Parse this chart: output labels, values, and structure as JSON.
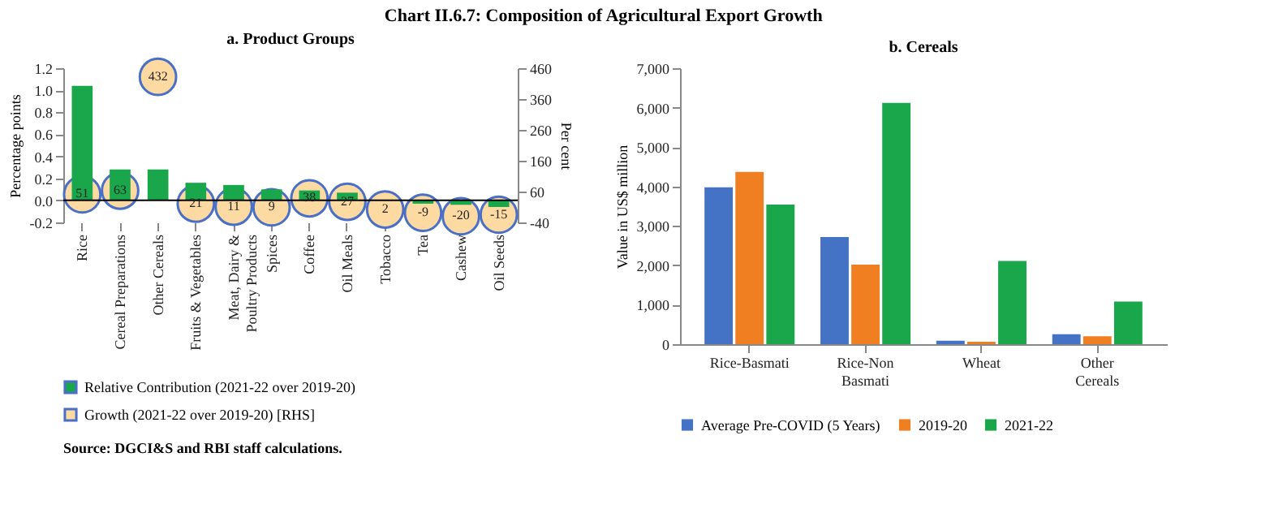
{
  "chart_data": [
    {
      "type": "bar",
      "title": "a. Product Groups",
      "ylabel": "Percentage points",
      "y2label": "Per cent",
      "annotations": [
        "Chart II.6.7: Composition of Agricultural Export Growth",
        "Source: DGCI&S and RBI staff calculations."
      ],
      "categories": [
        "Rice",
        "Cereal Preparations",
        "Other Cereals",
        "Fruits & Vegetables",
        "Meat, Dairy & Poultry Products",
        "Spices",
        "Coffee",
        "Oil Meals",
        "Tobacco",
        "Tea",
        "Cashew",
        "Oil Seeds"
      ],
      "series": [
        {
          "name": "Relative Contribution (2021-22 over 2019-20)",
          "type": "bar",
          "color": "#1aa64a",
          "values": [
            1.04,
            0.28,
            0.28,
            0.16,
            0.14,
            0.1,
            0.09,
            0.07,
            0.0,
            -0.03,
            -0.04,
            -0.06
          ]
        },
        {
          "name": "Growth (2021-22 over 2019-20) [RHS]",
          "type": "scatter",
          "axis": "y2",
          "color": "#fcdaa2",
          "values": [
            51,
            63,
            432,
            21,
            11,
            9,
            38,
            27,
            2,
            -9,
            -20,
            -15
          ],
          "value_labels": [
            "51",
            "63",
            "432",
            "21",
            "11",
            "9",
            "38",
            "27",
            "2",
            "-9",
            "-20",
            "-15"
          ]
        }
      ],
      "ylim": [
        -0.2,
        1.2
      ],
      "yticks": [
        {
          "value": -0.2,
          "label": "-0.2"
        },
        {
          "value": 0,
          "label": "0.0"
        },
        {
          "value": 0.2,
          "label": "0.2"
        },
        {
          "value": 0.4,
          "label": "0.4"
        },
        {
          "value": 0.6,
          "label": "0.6"
        },
        {
          "value": 0.8,
          "label": "0.8"
        },
        {
          "value": 1,
          "label": "1.0"
        },
        1.2
      ],
      "y2lim": [
        -40,
        460
      ],
      "y2ticks": [
        -40,
        60,
        160,
        260,
        360,
        460
      ],
      "marker": "circle",
      "legend": "bottom",
      "grid": false
    },
    {
      "type": "bar",
      "title": "b. Cereals",
      "ylabel": "Value in US$ million",
      "categories": [
        "Rice-Basmati",
        "Rice-Non Basmati",
        "Wheat",
        "Other Cereals"
      ],
      "series": [
        {
          "name": "Average Pre-COVID (5 Years)",
          "color": "#4472c4",
          "values": [
            3980,
            2720,
            90,
            250
          ]
        },
        {
          "name": "2019-20",
          "color": "#f07f22",
          "values": [
            4370,
            2020,
            60,
            200
          ]
        },
        {
          "name": "2021-22",
          "color": "#1aa64a",
          "values": [
            3540,
            6120,
            2110,
            1080
          ]
        }
      ],
      "ylim": [
        0,
        7000
      ],
      "yticks": [
        0,
        {
          "value": 1000,
          "label": "1,000"
        },
        {
          "value": 2000,
          "label": "2,000"
        },
        {
          "value": 3000,
          "label": "3,000"
        },
        {
          "value": 4000,
          "label": "4,000"
        },
        {
          "value": 5000,
          "label": "5,000"
        },
        {
          "value": 6000,
          "label": "6,000"
        },
        {
          "value": 7000,
          "label": "7,000"
        }
      ],
      "legend": "bottom",
      "grid": false
    }
  ]
}
